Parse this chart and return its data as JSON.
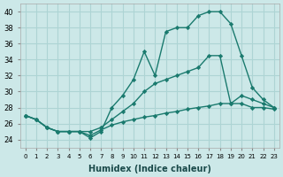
{
  "xlabel": "Humidex (Indice chaleur)",
  "background_color": "#cce8e8",
  "grid_color": "#add4d4",
  "line_color": "#1a7a6e",
  "xlim": [
    -0.5,
    23.5
  ],
  "ylim": [
    23,
    41
  ],
  "yticks": [
    24,
    26,
    28,
    30,
    32,
    34,
    36,
    38,
    40
  ],
  "line1_x": [
    0,
    1,
    2,
    3,
    4,
    5,
    6,
    7,
    8,
    9,
    10,
    11,
    12,
    13,
    14,
    15,
    16,
    17,
    18,
    19,
    20,
    21,
    22,
    23
  ],
  "line1_y": [
    27,
    26.5,
    25.5,
    25,
    25,
    25,
    24.2,
    25,
    28,
    29.5,
    31.5,
    35,
    32,
    37.5,
    38,
    38,
    39.5,
    40,
    40,
    38.5,
    34.5,
    30.5,
    29,
    28
  ],
  "line2_x": [
    0,
    1,
    2,
    3,
    4,
    5,
    6,
    7,
    8,
    9,
    10,
    11,
    12,
    13,
    14,
    15,
    16,
    17,
    18,
    19,
    20,
    21,
    22,
    23
  ],
  "line2_y": [
    27,
    26.5,
    25.5,
    25,
    25,
    25,
    25,
    25.5,
    26.5,
    27.5,
    28.5,
    30,
    31,
    31.5,
    32,
    32.5,
    33,
    34.5,
    34.5,
    28.5,
    29.5,
    29,
    28.5,
    28
  ],
  "line3_x": [
    0,
    1,
    2,
    3,
    4,
    5,
    6,
    7,
    8,
    9,
    10,
    11,
    12,
    13,
    14,
    15,
    16,
    17,
    18,
    19,
    20,
    21,
    22,
    23
  ],
  "line3_y": [
    27,
    26.5,
    25.5,
    25,
    25,
    25,
    24.5,
    25.2,
    25.8,
    26.2,
    26.5,
    26.8,
    27,
    27.3,
    27.5,
    27.8,
    28,
    28.2,
    28.5,
    28.5,
    28.5,
    28,
    28,
    27.8
  ]
}
